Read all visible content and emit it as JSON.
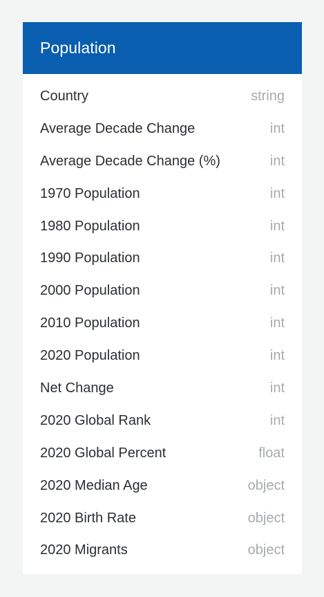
{
  "panel": {
    "title": "Population",
    "header_color": "#0a5eaf",
    "fields": [
      {
        "name": "Country",
        "type": "string"
      },
      {
        "name": "Average Decade Change",
        "type": "int"
      },
      {
        "name": "Average Decade Change (%)",
        "type": "int"
      },
      {
        "name": "1970 Population",
        "type": "int"
      },
      {
        "name": "1980 Population",
        "type": "int"
      },
      {
        "name": "1990 Population",
        "type": "int"
      },
      {
        "name": "2000 Population",
        "type": "int"
      },
      {
        "name": "2010 Population",
        "type": "int"
      },
      {
        "name": "2020 Population",
        "type": "int"
      },
      {
        "name": "Net Change",
        "type": "int"
      },
      {
        "name": "2020 Global Rank",
        "type": "int"
      },
      {
        "name": "2020 Global Percent",
        "type": "float"
      },
      {
        "name": "2020 Median Age",
        "type": "object"
      },
      {
        "name": "2020 Birth Rate",
        "type": "object"
      },
      {
        "name": "2020 Migrants",
        "type": "object"
      }
    ]
  }
}
